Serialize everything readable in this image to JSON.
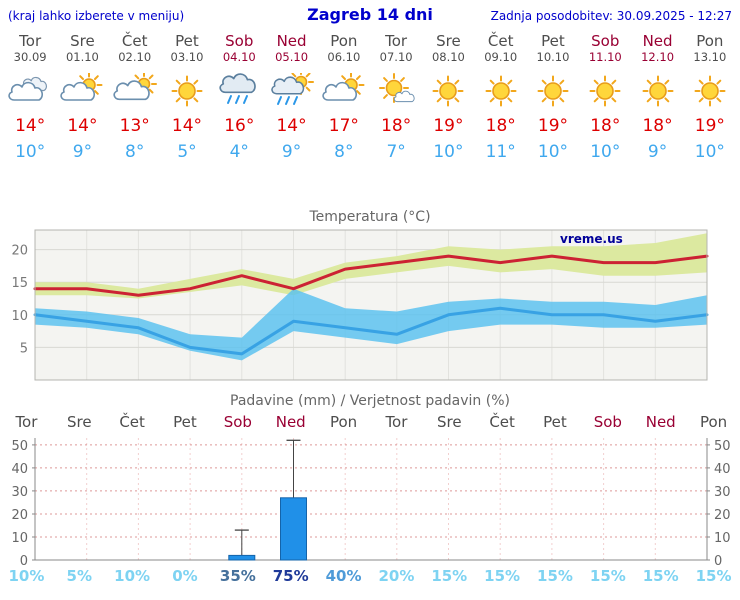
{
  "header": {
    "note": "(kraj lahko izberete v meniju)",
    "title": "Zagreb 14 dni",
    "update": "Zadnja posodobitev: 30.09.2025 - 12:27"
  },
  "days": [
    {
      "name": "Tor",
      "date": "30.09",
      "weekend": false,
      "icon": "cloudy",
      "high": "14°",
      "low": "10°"
    },
    {
      "name": "Sre",
      "date": "01.10",
      "weekend": false,
      "icon": "sun-cloud",
      "high": "14°",
      "low": "9°"
    },
    {
      "name": "Čet",
      "date": "02.10",
      "weekend": false,
      "icon": "cloud-sun",
      "high": "13°",
      "low": "8°"
    },
    {
      "name": "Pet",
      "date": "03.10",
      "weekend": false,
      "icon": "sun",
      "high": "14°",
      "low": "5°"
    },
    {
      "name": "Sob",
      "date": "04.10",
      "weekend": true,
      "icon": "rain",
      "high": "16°",
      "low": "4°"
    },
    {
      "name": "Ned",
      "date": "05.10",
      "weekend": true,
      "icon": "sun-rain",
      "high": "14°",
      "low": "9°"
    },
    {
      "name": "Pon",
      "date": "06.10",
      "weekend": false,
      "icon": "sun-cloud",
      "high": "17°",
      "low": "8°"
    },
    {
      "name": "Tor",
      "date": "07.10",
      "weekend": false,
      "icon": "sun-small-cloud",
      "high": "18°",
      "low": "7°"
    },
    {
      "name": "Sre",
      "date": "08.10",
      "weekend": false,
      "icon": "sun",
      "high": "19°",
      "low": "10°"
    },
    {
      "name": "Čet",
      "date": "09.10",
      "weekend": false,
      "icon": "sun",
      "high": "18°",
      "low": "11°"
    },
    {
      "name": "Pet",
      "date": "10.10",
      "weekend": false,
      "icon": "sun",
      "high": "19°",
      "low": "10°"
    },
    {
      "name": "Sob",
      "date": "11.10",
      "weekend": true,
      "icon": "sun",
      "high": "18°",
      "low": "10°"
    },
    {
      "name": "Ned",
      "date": "12.10",
      "weekend": true,
      "icon": "sun",
      "high": "18°",
      "low": "9°"
    },
    {
      "name": "Pon",
      "date": "13.10",
      "weekend": false,
      "icon": "sun",
      "high": "19°",
      "low": "10°"
    }
  ],
  "chart_data": [
    {
      "type": "line",
      "title": "Temperatura (°C)",
      "watermark": "vreme.us",
      "x_labels": [
        "Tor 30.09",
        "Sre 01.10",
        "Čet 02.10",
        "Pet 03.10",
        "Sob 04.10",
        "Ned 05.10",
        "Pon 06.10",
        "Tor 07.10",
        "Sre 08.10",
        "Čet 09.10",
        "Pet 10.10",
        "Sob 11.10",
        "Ned 12.10",
        "Pon 13.10"
      ],
      "ylim": [
        0,
        23
      ],
      "yticks": [
        5,
        10,
        15,
        20
      ],
      "grid": true,
      "legend": "none",
      "series": [
        {
          "name": "max-temp",
          "color": "#cc2233",
          "values": [
            14,
            14,
            13,
            14,
            16,
            14,
            17,
            18,
            19,
            18,
            19,
            18,
            18,
            19
          ]
        },
        {
          "name": "min-temp",
          "color": "#38a2e4",
          "values": [
            10,
            9,
            8,
            5,
            4,
            9,
            8,
            7,
            10,
            11,
            10,
            10,
            9,
            10
          ]
        }
      ],
      "bands": [
        {
          "name": "max-temp-range",
          "color": "#dce9a0",
          "upper": [
            15,
            15,
            14,
            15.5,
            17,
            15.5,
            18,
            19,
            20.5,
            20,
            20.5,
            20.5,
            21,
            22.5
          ],
          "lower": [
            13,
            13,
            12.5,
            13.5,
            14.5,
            13,
            15.5,
            16.5,
            17.5,
            16.5,
            17,
            16,
            16,
            16.5
          ]
        },
        {
          "name": "min-temp-range",
          "color": "#58c1ef",
          "upper": [
            11,
            10.5,
            9.5,
            7,
            6.5,
            14,
            11,
            10.5,
            12,
            12.5,
            12,
            12,
            11.5,
            13
          ],
          "lower": [
            8.5,
            8,
            7,
            4.5,
            3,
            7.5,
            6.5,
            5.5,
            7.5,
            8.5,
            8.5,
            8,
            8,
            8.5
          ]
        }
      ]
    },
    {
      "type": "bar",
      "title": "Padavine (mm) / Verjetnost padavin (%)",
      "categories": [
        "Tor",
        "Sre",
        "Čet",
        "Pet",
        "Sob",
        "Ned",
        "Pon",
        "Tor",
        "Sre",
        "Čet",
        "Pet",
        "Sob",
        "Ned",
        "Pon"
      ],
      "weekend_flags": [
        false,
        false,
        false,
        false,
        true,
        true,
        false,
        false,
        false,
        false,
        false,
        true,
        true,
        false
      ],
      "precip_mm": [
        0,
        0,
        0,
        0,
        2,
        27,
        0,
        0,
        0,
        0,
        0,
        0,
        0,
        0
      ],
      "precip_max_mm": [
        0,
        0,
        0,
        0,
        13,
        52,
        0,
        0,
        0,
        0,
        0,
        0,
        0,
        0
      ],
      "probability_pct": [
        "10%",
        "5%",
        "10%",
        "0%",
        "35%",
        "75%",
        "40%",
        "20%",
        "15%",
        "15%",
        "15%",
        "15%",
        "15%",
        "15%"
      ],
      "probability_colors": [
        "#7ed3f2",
        "#7ed3f2",
        "#7ed3f2",
        "#7ed3f2",
        "#46719c",
        "#1f3a99",
        "#4f9bd8",
        "#7ed3f2",
        "#7ed3f2",
        "#7ed3f2",
        "#7ed3f2",
        "#7ed3f2",
        "#7ed3f2",
        "#7ed3f2"
      ],
      "ylim": [
        0,
        53
      ],
      "yticks": [
        0,
        10,
        20,
        30,
        40,
        50
      ],
      "bar_color": "#2090e8"
    }
  ]
}
